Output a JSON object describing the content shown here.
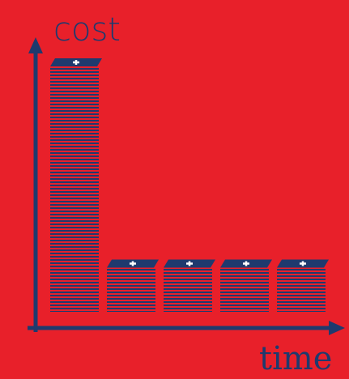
{
  "chart_data": {
    "type": "bar",
    "x_label": "time",
    "y_label": "cost",
    "categories": [
      null,
      null,
      null,
      null,
      null
    ],
    "values": [
      100,
      18,
      18,
      18,
      18
    ],
    "color": "#1f3a6e",
    "background": "#e8202a",
    "ylim": [
      0,
      100
    ]
  }
}
